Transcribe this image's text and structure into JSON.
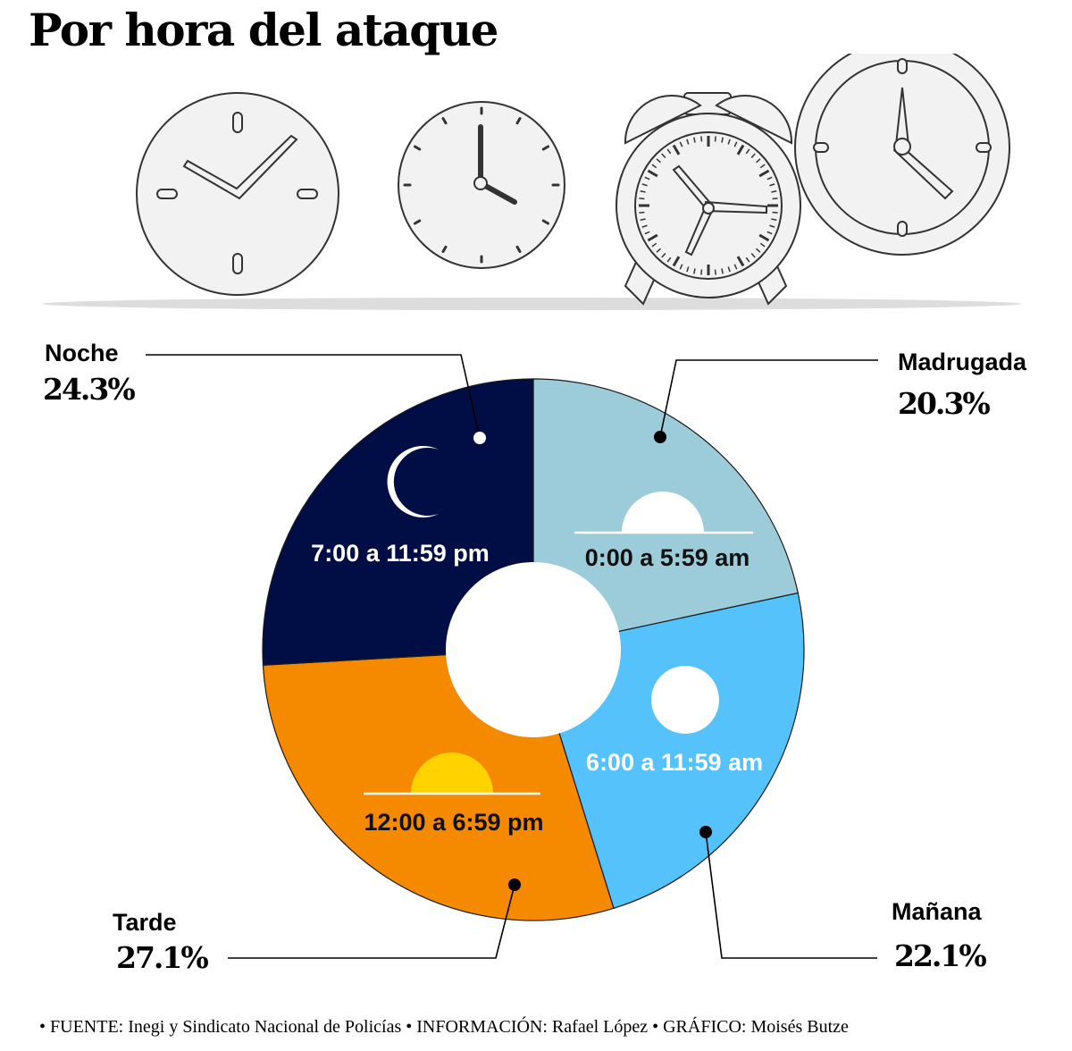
{
  "title": "Por hora del ataque",
  "chart_data": {
    "type": "pie",
    "title": "Por hora del ataque",
    "slices": [
      {
        "name": "Madrugada",
        "percent": 20.3,
        "value_label": "20.3%",
        "range": "0:00 a 5:59 am",
        "color": "#9ccbd9",
        "icon": "sunrise-icon"
      },
      {
        "name": "Mañana",
        "percent": 22.1,
        "value_label": "22.1%",
        "range": "6:00 a 11:59 am",
        "color": "#55c2fc",
        "icon": "sun-icon"
      },
      {
        "name": "Tarde",
        "percent": 27.1,
        "value_label": "27.1%",
        "range": "12:00 a 6:59 pm",
        "color": "#f58a00",
        "icon": "sunset-icon"
      },
      {
        "name": "Noche",
        "percent": 24.3,
        "value_label": "24.3%",
        "range": "7:00 a 11:59 pm",
        "color": "#000e45",
        "icon": "moon-icon"
      }
    ]
  },
  "footer": "• FUENTE: Inegi y Sindicato Nacional de Policías • INFORMACIÓN: Rafael López • GRÁFICO: Moisés Butze",
  "decorations": {
    "clock_icons": [
      "analog-clock-icon",
      "analog-clock-icon",
      "alarm-clock-icon",
      "wall-clock-icon"
    ],
    "sun_color": "#ffd200"
  }
}
